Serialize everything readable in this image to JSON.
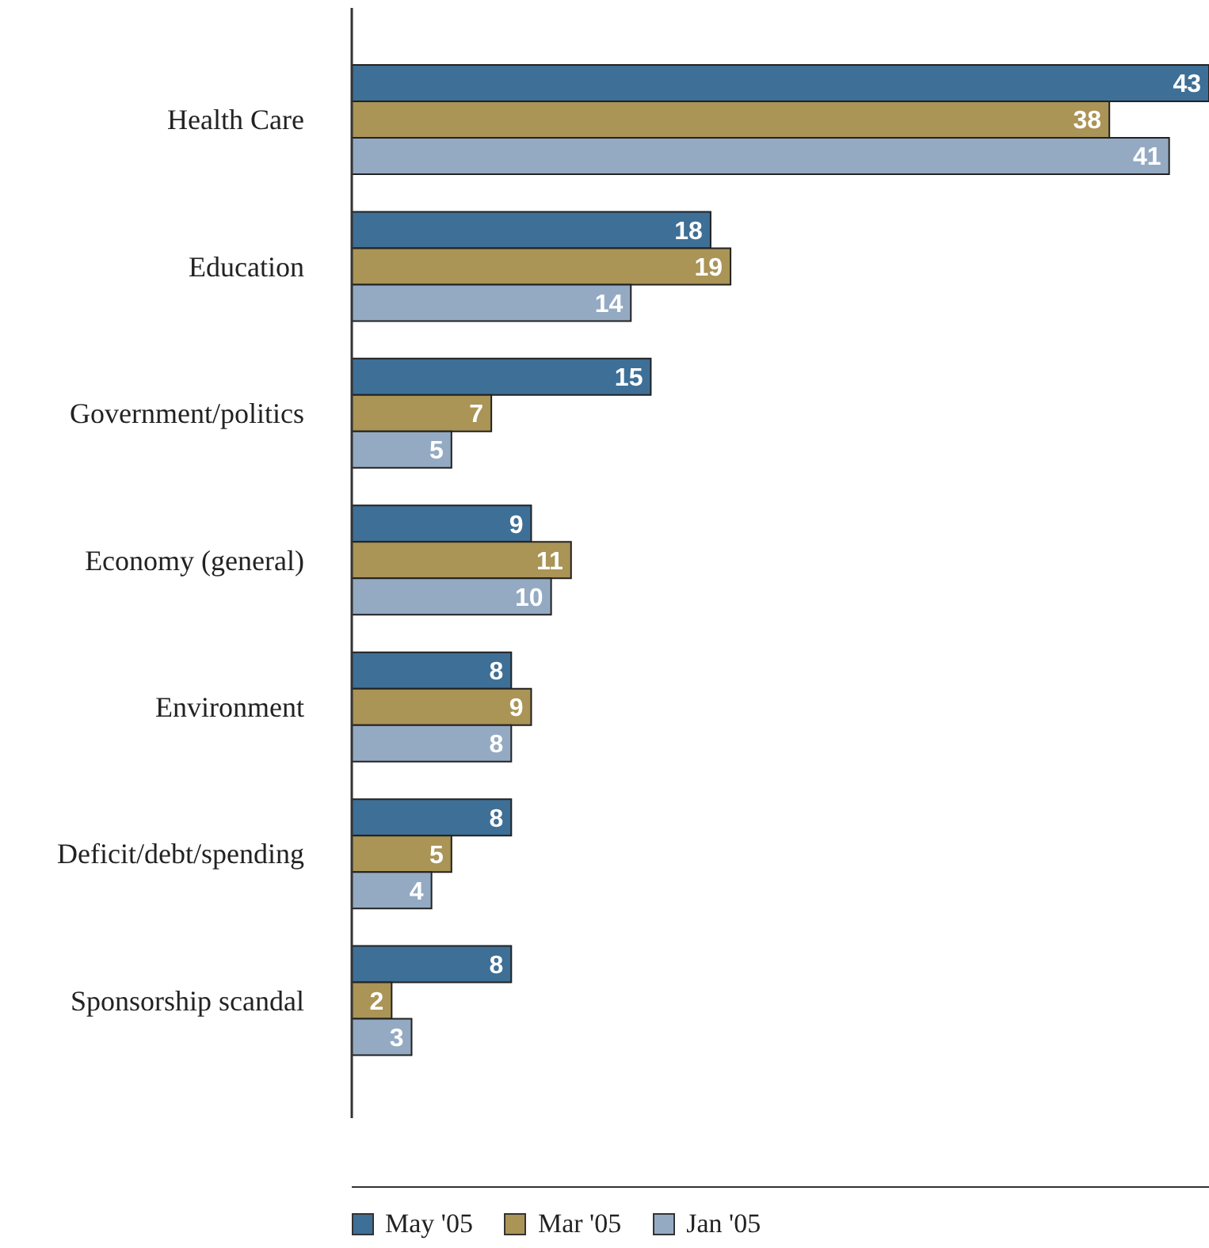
{
  "chart_data": {
    "type": "bar",
    "orientation": "horizontal",
    "categories": [
      "Health Care",
      "Education",
      "Government/politics",
      "Economy (general)",
      "Environment",
      "Deficit/debt/spending",
      "Sponsorship scandal"
    ],
    "series": [
      {
        "name": "May '05",
        "color": "#3e6f96",
        "values": [
          43,
          18,
          15,
          9,
          8,
          8,
          8
        ]
      },
      {
        "name": "Mar '05",
        "color": "#aa9456",
        "values": [
          38,
          19,
          7,
          11,
          9,
          5,
          2
        ]
      },
      {
        "name": "Jan '05",
        "color": "#94aac3",
        "values": [
          41,
          14,
          5,
          10,
          8,
          4,
          3
        ]
      }
    ],
    "xlim": [
      0,
      43
    ],
    "data_labels": true,
    "legend": "bottom",
    "tick_labels": "y"
  }
}
